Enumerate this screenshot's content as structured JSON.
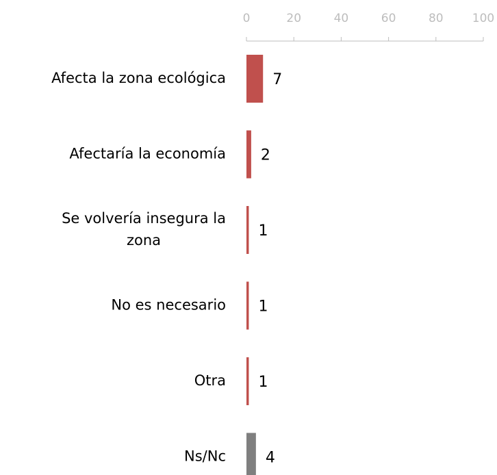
{
  "chart_data": {
    "type": "hbar",
    "categories": [
      "Afecta la zona ecológica",
      "Afectaría la economía",
      "Se volvería insegura la zona",
      "No es necesario",
      "Otra",
      "Ns/Nc"
    ],
    "values": [
      7,
      2,
      1,
      1,
      1,
      4
    ],
    "colors": [
      "#c0504d",
      "#c0504d",
      "#c0504d",
      "#c0504d",
      "#c0504d",
      "#7f7f7f"
    ],
    "xlim": [
      0,
      100
    ],
    "xticks": [
      0,
      20,
      40,
      60,
      80,
      100
    ]
  }
}
